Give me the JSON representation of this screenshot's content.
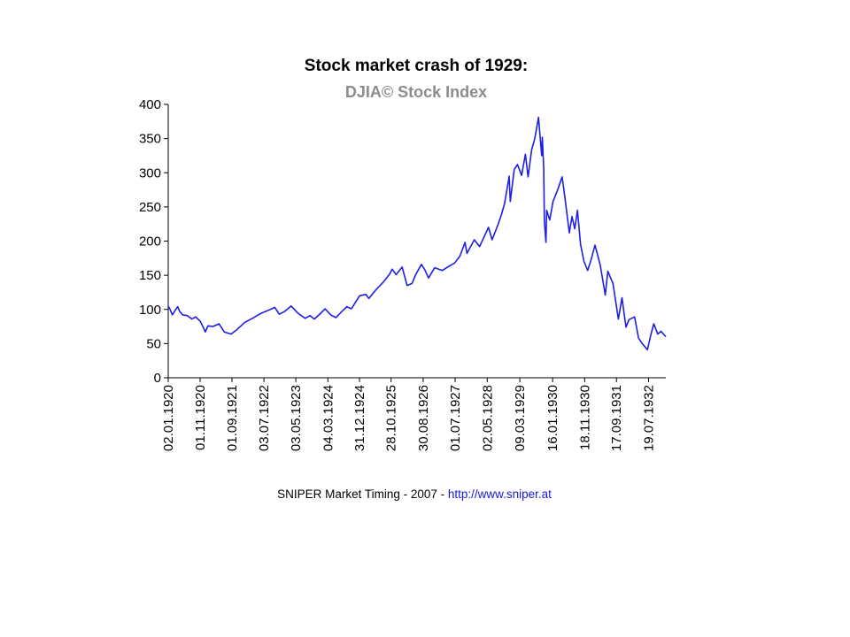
{
  "colors": {
    "series": "#1e1ee6",
    "subtitle": "#8c8c8c",
    "link": "#1a1ad8",
    "axis": "#000000"
  },
  "footer": {
    "credit": "SNIPER Market Timing - 2007 - ",
    "link": "http://www.sniper.at"
  },
  "chart_data": {
    "type": "line",
    "title": "Stock market crash of 1929:",
    "subtitle": "DJIA© Stock Index",
    "xlabel": "",
    "ylabel": "",
    "ylim": [
      0,
      400
    ],
    "yticks": [
      0,
      50,
      100,
      150,
      200,
      250,
      300,
      350,
      400
    ],
    "xlim": [
      "1920-01-02",
      "1932-12-31"
    ],
    "xtick_labels": [
      "02.01.1920",
      "01.11.1920",
      "01.09.1921",
      "03.07.1922",
      "03.05.1923",
      "04.03.1924",
      "31.12.1924",
      "28.10.1925",
      "30.08.1926",
      "01.07.1927",
      "02.05.1928",
      "09.03.1929",
      "16.01.1930",
      "18.11.1930",
      "17.09.1931",
      "19.07.1932"
    ],
    "grid": false,
    "legend": "none",
    "series": [
      {
        "values": [
          {
            "x": "1920-01-02",
            "y": 105
          },
          {
            "x": "1920-01-20",
            "y": 100
          },
          {
            "x": "1920-02-10",
            "y": 92
          },
          {
            "x": "1920-03-05",
            "y": 98
          },
          {
            "x": "1920-04-01",
            "y": 104
          },
          {
            "x": "1920-04-20",
            "y": 97
          },
          {
            "x": "1920-05-20",
            "y": 92
          },
          {
            "x": "1920-07-01",
            "y": 91
          },
          {
            "x": "1920-08-15",
            "y": 86
          },
          {
            "x": "1920-09-20",
            "y": 89
          },
          {
            "x": "1920-11-01",
            "y": 83
          },
          {
            "x": "1920-12-01",
            "y": 74
          },
          {
            "x": "1920-12-21",
            "y": 67
          },
          {
            "x": "1921-01-15",
            "y": 76
          },
          {
            "x": "1921-03-01",
            "y": 75
          },
          {
            "x": "1921-05-01",
            "y": 79
          },
          {
            "x": "1921-06-20",
            "y": 67
          },
          {
            "x": "1921-08-24",
            "y": 64
          },
          {
            "x": "1921-10-15",
            "y": 70
          },
          {
            "x": "1921-12-31",
            "y": 81
          },
          {
            "x": "1922-03-15",
            "y": 87
          },
          {
            "x": "1922-06-01",
            "y": 94
          },
          {
            "x": "1922-09-01",
            "y": 100
          },
          {
            "x": "1922-10-14",
            "y": 103
          },
          {
            "x": "1922-11-27",
            "y": 93
          },
          {
            "x": "1923-01-15",
            "y": 97
          },
          {
            "x": "1923-03-20",
            "y": 105
          },
          {
            "x": "1923-05-20",
            "y": 95
          },
          {
            "x": "1923-07-31",
            "y": 87
          },
          {
            "x": "1923-09-15",
            "y": 91
          },
          {
            "x": "1923-10-27",
            "y": 86
          },
          {
            "x": "1923-12-31",
            "y": 95
          },
          {
            "x": "1924-02-06",
            "y": 101
          },
          {
            "x": "1924-04-01",
            "y": 92
          },
          {
            "x": "1924-05-20",
            "y": 88
          },
          {
            "x": "1924-07-15",
            "y": 97
          },
          {
            "x": "1924-09-01",
            "y": 104
          },
          {
            "x": "1924-10-15",
            "y": 101
          },
          {
            "x": "1924-12-31",
            "y": 120
          },
          {
            "x": "1925-03-01",
            "y": 122
          },
          {
            "x": "1925-03-30",
            "y": 116
          },
          {
            "x": "1925-06-01",
            "y": 128
          },
          {
            "x": "1925-08-15",
            "y": 140
          },
          {
            "x": "1925-10-15",
            "y": 152
          },
          {
            "x": "1925-11-06",
            "y": 159
          },
          {
            "x": "1925-12-15",
            "y": 151
          },
          {
            "x": "1926-02-11",
            "y": 162
          },
          {
            "x": "1926-03-30",
            "y": 135
          },
          {
            "x": "1926-05-15",
            "y": 138
          },
          {
            "x": "1926-06-20",
            "y": 151
          },
          {
            "x": "1926-08-14",
            "y": 166
          },
          {
            "x": "1926-09-15",
            "y": 158
          },
          {
            "x": "1926-10-20",
            "y": 146
          },
          {
            "x": "1926-12-18",
            "y": 161
          },
          {
            "x": "1927-03-01",
            "y": 157
          },
          {
            "x": "1927-05-01",
            "y": 163
          },
          {
            "x": "1927-06-27",
            "y": 168
          },
          {
            "x": "1927-08-15",
            "y": 178
          },
          {
            "x": "1927-10-03",
            "y": 198
          },
          {
            "x": "1927-10-22",
            "y": 182
          },
          {
            "x": "1927-12-31",
            "y": 202
          },
          {
            "x": "1928-02-20",
            "y": 192
          },
          {
            "x": "1928-05-14",
            "y": 220
          },
          {
            "x": "1928-06-18",
            "y": 202
          },
          {
            "x": "1928-08-15",
            "y": 225
          },
          {
            "x": "1928-09-15",
            "y": 239
          },
          {
            "x": "1928-10-15",
            "y": 255
          },
          {
            "x": "1928-11-28",
            "y": 295
          },
          {
            "x": "1928-12-08",
            "y": 258
          },
          {
            "x": "1929-01-15",
            "y": 305
          },
          {
            "x": "1929-02-15",
            "y": 312
          },
          {
            "x": "1929-03-26",
            "y": 296
          },
          {
            "x": "1929-05-01",
            "y": 327
          },
          {
            "x": "1929-05-27",
            "y": 294
          },
          {
            "x": "1929-06-30",
            "y": 334
          },
          {
            "x": "1929-07-30",
            "y": 350
          },
          {
            "x": "1929-09-03",
            "y": 381
          },
          {
            "x": "1929-10-04",
            "y": 325
          },
          {
            "x": "1929-10-10",
            "y": 352
          },
          {
            "x": "1929-10-23",
            "y": 306
          },
          {
            "x": "1929-10-29",
            "y": 230
          },
          {
            "x": "1929-11-13",
            "y": 198
          },
          {
            "x": "1929-11-20",
            "y": 245
          },
          {
            "x": "1929-12-20",
            "y": 231
          },
          {
            "x": "1930-01-20",
            "y": 258
          },
          {
            "x": "1930-03-01",
            "y": 273
          },
          {
            "x": "1930-04-17",
            "y": 294
          },
          {
            "x": "1930-05-15",
            "y": 262
          },
          {
            "x": "1930-06-24",
            "y": 212
          },
          {
            "x": "1930-07-20",
            "y": 236
          },
          {
            "x": "1930-08-15",
            "y": 218
          },
          {
            "x": "1930-09-10",
            "y": 245
          },
          {
            "x": "1930-10-10",
            "y": 195
          },
          {
            "x": "1930-11-10",
            "y": 171
          },
          {
            "x": "1930-12-16",
            "y": 157
          },
          {
            "x": "1931-01-15",
            "y": 171
          },
          {
            "x": "1931-02-24",
            "y": 194
          },
          {
            "x": "1931-04-15",
            "y": 165
          },
          {
            "x": "1931-06-02",
            "y": 121
          },
          {
            "x": "1931-06-27",
            "y": 156
          },
          {
            "x": "1931-08-15",
            "y": 138
          },
          {
            "x": "1931-10-05",
            "y": 86
          },
          {
            "x": "1931-11-09",
            "y": 117
          },
          {
            "x": "1931-12-17",
            "y": 74
          },
          {
            "x": "1932-01-14",
            "y": 85
          },
          {
            "x": "1932-03-08",
            "y": 89
          },
          {
            "x": "1932-04-15",
            "y": 58
          },
          {
            "x": "1932-05-20",
            "y": 50
          },
          {
            "x": "1932-07-08",
            "y": 41
          },
          {
            "x": "1932-08-10",
            "y": 63
          },
          {
            "x": "1932-09-07",
            "y": 79
          },
          {
            "x": "1932-10-15",
            "y": 64
          },
          {
            "x": "1932-11-15",
            "y": 68
          },
          {
            "x": "1932-12-31",
            "y": 60
          }
        ]
      }
    ]
  }
}
